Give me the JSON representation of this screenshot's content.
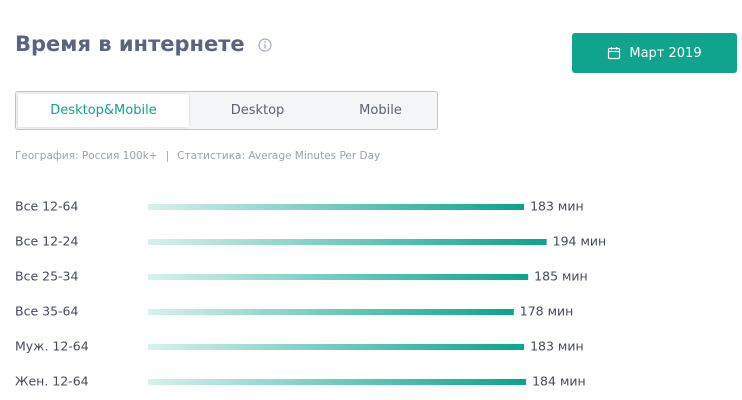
{
  "header": {
    "title": "Время в интернете",
    "date_button": "Март 2019"
  },
  "tabs": [
    "Desktop&Mobile",
    "Desktop",
    "Mobile"
  ],
  "filters": {
    "geography": "География: Россия 100k+",
    "separator": "|",
    "statistic": "Статистика: Average Minutes Per Day"
  },
  "chart_data": {
    "type": "bar",
    "orientation": "horizontal",
    "categories": [
      "Все 12-64",
      "Все 12-24",
      "Все 25-34",
      "Все 35-64",
      "Муж. 12-64",
      "Жен. 12-64"
    ],
    "values": [
      183,
      194,
      185,
      178,
      183,
      184
    ],
    "value_labels": [
      "183 мин",
      "194 мин",
      "185 мин",
      "178 мин",
      "183 мин",
      "184 мин"
    ],
    "color": "#0aa38c"
  }
}
